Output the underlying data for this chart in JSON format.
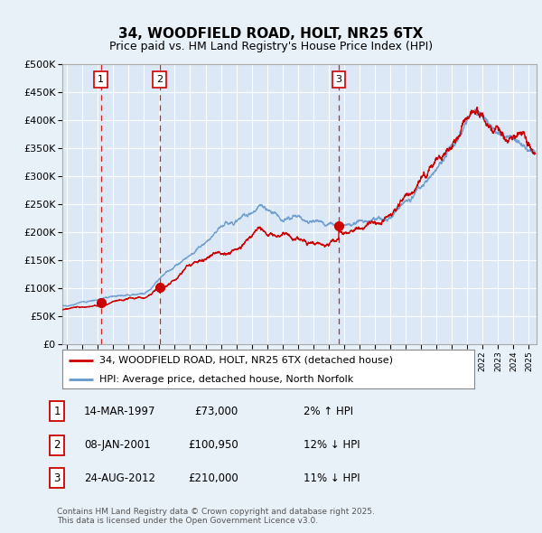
{
  "title": "34, WOODFIELD ROAD, HOLT, NR25 6TX",
  "subtitle": "Price paid vs. HM Land Registry's House Price Index (HPI)",
  "legend_line1": "34, WOODFIELD ROAD, HOLT, NR25 6TX (detached house)",
  "legend_line2": "HPI: Average price, detached house, North Norfolk",
  "sale1_date": "14-MAR-1997",
  "sale1_price": "£73,000",
  "sale1_hpi": "2% ↑ HPI",
  "sale1_year": 1997.2,
  "sale1_value": 73000,
  "sale2_date": "08-JAN-2001",
  "sale2_price": "£100,950",
  "sale2_hpi": "12% ↓ HPI",
  "sale2_year": 2001.03,
  "sale2_value": 100950,
  "sale3_date": "24-AUG-2012",
  "sale3_price": "£210,000",
  "sale3_hpi": "11% ↓ HPI",
  "sale3_year": 2012.65,
  "sale3_value": 210000,
  "hpi_line_color": "#6699cc",
  "price_color": "#cc0000",
  "dashed_color": "#cc0000",
  "background_color": "#e8f0f8",
  "plot_bg": "#dce8f5",
  "grid_color": "#ffffff",
  "footer": "Contains HM Land Registry data © Crown copyright and database right 2025.\nThis data is licensed under the Open Government Licence v3.0.",
  "ylim_max": 500000,
  "xlim_start": 1994.7,
  "xlim_end": 2025.5
}
